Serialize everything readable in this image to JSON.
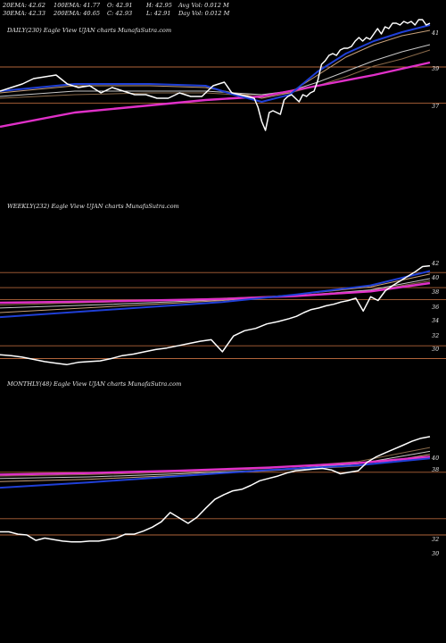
{
  "stats": {
    "row1": [
      "20EMA: 42.62",
      "100EMA: 41.77",
      "O: 42.91",
      "H: 42.95",
      "Avg Vol: 0.012  M"
    ],
    "row2": [
      "30EMA: 42.33",
      "200EMA: 40.65",
      "C: 42.93",
      "L: 42.91",
      "Day Vol: 0.012  M"
    ]
  },
  "colors": {
    "background": "#000000",
    "price": "#ffffff",
    "ema20": "#1f3fd6",
    "ema200": "#e030c8",
    "ema_bundle": [
      "#c7a07a",
      "#c8c8c8",
      "#8a6a4a"
    ],
    "level_lines": "#b0643a"
  },
  "chart_data": [
    {
      "type": "line",
      "title": "DAILY(230) Eagle  View  UJAN  charts MunafaSutra.com",
      "yticks": [
        "41",
        "39",
        "37"
      ],
      "ylim": [
        36.3,
        43.2
      ],
      "levels": [
        40.45,
        38.43
      ],
      "series": [
        {
          "role": "price",
          "x": [
            0,
            6,
            12,
            18,
            24,
            30,
            36,
            42,
            48,
            54,
            60,
            66,
            72,
            78,
            84,
            90,
            96,
            102,
            108,
            114,
            120,
            124,
            128,
            132,
            136,
            138,
            140,
            142,
            144,
            146,
            148,
            150,
            152,
            154,
            156,
            158,
            160,
            162,
            164,
            166,
            168,
            170,
            172,
            174,
            176,
            178,
            180,
            182,
            184,
            186,
            188,
            190,
            192,
            194,
            196,
            198,
            200,
            202,
            204,
            206,
            208,
            210,
            212,
            214,
            216,
            218,
            220,
            222,
            224,
            226,
            228,
            230
          ],
          "y": [
            39.1,
            39.3,
            39.5,
            39.8,
            39.9,
            40.0,
            39.5,
            39.3,
            39.4,
            39.0,
            39.3,
            39.1,
            38.9,
            38.9,
            38.7,
            38.7,
            39.0,
            38.8,
            38.8,
            39.4,
            39.6,
            39.0,
            38.9,
            38.8,
            38.7,
            38.2,
            37.4,
            36.9,
            37.9,
            38.0,
            37.9,
            37.8,
            38.6,
            38.8,
            38.9,
            38.7,
            38.5,
            38.9,
            38.8,
            39.0,
            39.1,
            39.7,
            40.6,
            40.8,
            41.1,
            41.2,
            41.1,
            41.4,
            41.5,
            41.5,
            41.6,
            41.9,
            42.1,
            41.9,
            42.1,
            42.0,
            42.3,
            42.6,
            42.3,
            42.7,
            42.6,
            42.9,
            42.9,
            42.8,
            43.0,
            42.9,
            43.0,
            42.8,
            43.1,
            43.1,
            42.8,
            42.9
          ]
        },
        {
          "role": "ema20",
          "x": [
            0,
            40,
            80,
            110,
            125,
            140,
            155,
            170,
            185,
            200,
            215,
            230
          ],
          "y": [
            39.1,
            39.5,
            39.5,
            39.4,
            38.9,
            38.5,
            38.9,
            40.2,
            41.2,
            41.9,
            42.4,
            42.8
          ]
        },
        {
          "role": "ema30",
          "x": [
            0,
            40,
            80,
            110,
            125,
            140,
            155,
            170,
            185,
            200,
            215,
            230
          ],
          "y": [
            39.0,
            39.4,
            39.4,
            39.3,
            39.0,
            38.7,
            39.0,
            40.0,
            41.0,
            41.7,
            42.2,
            42.5
          ]
        },
        {
          "role": "ema100",
          "x": [
            0,
            40,
            80,
            110,
            125,
            140,
            155,
            170,
            185,
            200,
            215,
            230
          ],
          "y": [
            38.8,
            39.1,
            39.1,
            39.1,
            39.0,
            38.9,
            39.1,
            39.6,
            40.2,
            40.8,
            41.3,
            41.7
          ]
        },
        {
          "role": "ema_extra",
          "x": [
            0,
            40,
            80,
            110,
            125,
            140,
            155,
            170,
            185,
            200,
            215,
            230
          ],
          "y": [
            38.7,
            38.9,
            39.0,
            39.0,
            38.9,
            38.9,
            39.0,
            39.4,
            39.9,
            40.5,
            40.9,
            41.4
          ]
        },
        {
          "role": "ema200",
          "x": [
            0,
            40,
            80,
            110,
            140,
            170,
            200,
            230
          ],
          "y": [
            37.1,
            37.9,
            38.3,
            38.6,
            38.8,
            39.4,
            40.0,
            40.7
          ]
        }
      ]
    },
    {
      "type": "line",
      "title": "WEEKLY(232) Eagle  View  UJAN  charts MunafaSutra.com",
      "yticks": [
        "42",
        "40",
        "38",
        "36",
        "34",
        "32",
        "30"
      ],
      "ylim": [
        28.9,
        43.1
      ],
      "levels": [
        41.3,
        39.3,
        37.7,
        31.6,
        29.9
      ],
      "series": [
        {
          "role": "price",
          "x": [
            0,
            6,
            12,
            18,
            24,
            30,
            36,
            42,
            48,
            54,
            60,
            66,
            72,
            78,
            84,
            90,
            96,
            102,
            108,
            114,
            120,
            126,
            132,
            138,
            144,
            150,
            156,
            160,
            164,
            168,
            172,
            176,
            180,
            184,
            188,
            192,
            196,
            200,
            204,
            208,
            212,
            216,
            220,
            224,
            228,
            232
          ],
          "y": [
            30.4,
            30.3,
            30.1,
            29.8,
            29.5,
            29.3,
            29.1,
            29.4,
            29.5,
            29.6,
            29.9,
            30.3,
            30.5,
            30.8,
            31.1,
            31.3,
            31.6,
            31.9,
            32.2,
            32.4,
            30.8,
            32.9,
            33.6,
            33.9,
            34.5,
            34.8,
            35.2,
            35.5,
            36.0,
            36.4,
            36.6,
            36.9,
            37.1,
            37.4,
            37.6,
            37.9,
            36.2,
            38.1,
            37.6,
            38.9,
            39.6,
            40.2,
            40.8,
            41.4,
            42.1,
            42.2
          ]
        },
        {
          "role": "ema20",
          "x": [
            0,
            60,
            120,
            160,
            200,
            232
          ],
          "y": [
            35.4,
            36.4,
            37.4,
            38.4,
            39.6,
            41.5
          ]
        },
        {
          "role": "ema30",
          "x": [
            0,
            60,
            120,
            160,
            200,
            232
          ],
          "y": [
            36.0,
            36.8,
            37.6,
            38.4,
            39.4,
            41.1
          ]
        },
        {
          "role": "ema100",
          "x": [
            0,
            60,
            120,
            160,
            200,
            232
          ],
          "y": [
            36.6,
            37.1,
            37.7,
            38.2,
            39.0,
            40.5
          ]
        },
        {
          "role": "ema_extra",
          "x": [
            0,
            60,
            120,
            160,
            200,
            232
          ],
          "y": [
            37.0,
            37.4,
            37.9,
            38.3,
            38.9,
            40.2
          ]
        },
        {
          "role": "ema200",
          "x": [
            0,
            60,
            120,
            160,
            200,
            232
          ],
          "y": [
            37.3,
            37.5,
            37.8,
            38.2,
            38.8,
            39.9
          ]
        }
      ]
    },
    {
      "type": "line",
      "title": "MONTHLY(48) Eagle  View  UJAN  charts MunafaSutra.com",
      "yticks": [
        "40",
        "38",
        "32",
        "30"
      ],
      "ylim": [
        28.5,
        43.5
      ],
      "levels": [
        38.1,
        32.1,
        30.0
      ],
      "series": [
        {
          "role": "price",
          "x": [
            0,
            1,
            2,
            3,
            4,
            5,
            6,
            7,
            8,
            9,
            10,
            11,
            12,
            13,
            14,
            15,
            16,
            17,
            18,
            19,
            20,
            21,
            22,
            23,
            24,
            25,
            26,
            27,
            28,
            29,
            30,
            31,
            32,
            33,
            34,
            35,
            36,
            37,
            38,
            39,
            40,
            41,
            42,
            43,
            44,
            45,
            46,
            47,
            48
          ],
          "y": [
            30.4,
            30.4,
            30.1,
            30.0,
            29.3,
            29.6,
            29.4,
            29.2,
            29.1,
            29.1,
            29.2,
            29.2,
            29.4,
            29.6,
            30.1,
            30.1,
            30.5,
            31.0,
            31.7,
            32.9,
            32.2,
            31.5,
            32.3,
            33.5,
            34.6,
            35.2,
            35.7,
            35.9,
            36.4,
            37.0,
            37.3,
            37.6,
            38.0,
            38.3,
            38.4,
            38.5,
            38.6,
            38.4,
            37.9,
            38.1,
            38.3,
            39.4,
            40.1,
            40.6,
            41.1,
            41.6,
            42.1,
            42.5,
            42.7
          ]
        },
        {
          "role": "ema20",
          "x": [
            0,
            10,
            20,
            30,
            40,
            48
          ],
          "y": [
            36.1,
            36.8,
            37.6,
            38.4,
            39.0,
            39.9
          ]
        },
        {
          "role": "ema30",
          "x": [
            0,
            10,
            20,
            30,
            40,
            48
          ],
          "y": [
            36.9,
            37.2,
            37.7,
            38.3,
            38.9,
            40.4
          ]
        },
        {
          "role": "ema100",
          "x": [
            0,
            10,
            20,
            30,
            40,
            48
          ],
          "y": [
            37.3,
            37.5,
            37.9,
            38.4,
            39.2,
            40.8
          ]
        },
        {
          "role": "ema_extra",
          "x": [
            0,
            10,
            20,
            30,
            40,
            48
          ],
          "y": [
            37.6,
            37.8,
            38.1,
            38.6,
            39.5,
            41.3
          ]
        },
        {
          "role": "ema200",
          "x": [
            0,
            10,
            20,
            30,
            40,
            48
          ],
          "y": [
            37.8,
            38.0,
            38.3,
            38.7,
            39.3,
            40.1
          ]
        }
      ]
    }
  ]
}
